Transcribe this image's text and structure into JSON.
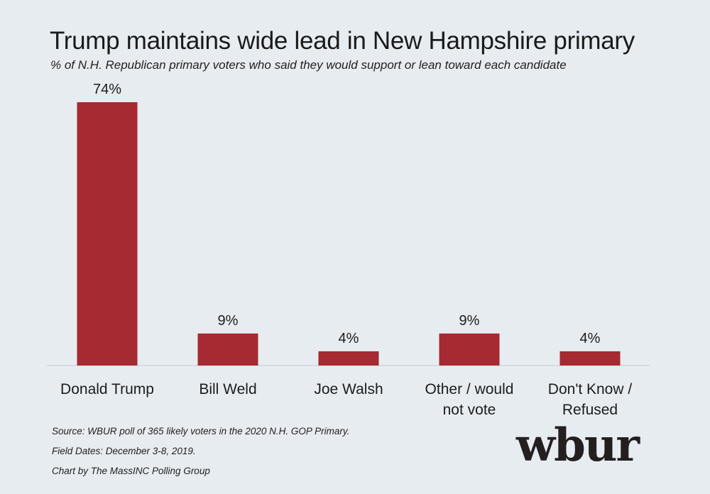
{
  "title": "Trump maintains wide lead in New Hampshire primary",
  "subtitle": "% of N.H. Republican primary voters who said they would support or lean toward each candidate",
  "footnotes": {
    "source": "Source: WBUR poll of 365 likely voters in the 2020 N.H. GOP Primary.",
    "field_dates": "Field Dates: December 3-8, 2019.",
    "credit": "Chart by The MassINC Polling Group"
  },
  "brand": "wbur",
  "colors": {
    "bar": "#a52a31",
    "background": "#e7ecf1"
  },
  "chart_data": {
    "type": "bar",
    "categories": [
      [
        "Donald Trump"
      ],
      [
        "Bill Weld"
      ],
      [
        "Joe Walsh"
      ],
      [
        "Other / would",
        "not vote"
      ],
      [
        "Don't Know /",
        "Refused"
      ]
    ],
    "values": [
      74,
      9,
      4,
      9,
      4
    ],
    "value_labels": [
      "74%",
      "9%",
      "4%",
      "9%",
      "4%"
    ],
    "ylim": [
      0,
      74
    ],
    "grid": false,
    "legend": "none"
  }
}
